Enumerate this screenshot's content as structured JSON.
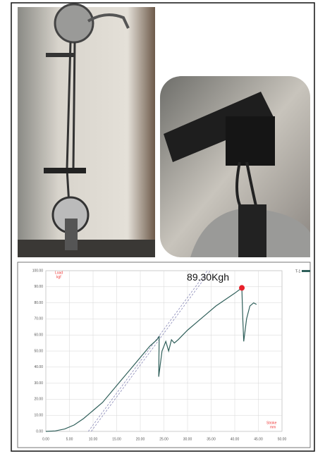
{
  "chart_data": {
    "type": "line",
    "x": [
      0,
      2,
      4,
      6,
      8,
      10,
      12,
      14,
      16,
      18,
      20,
      22,
      23.5,
      24,
      23.9,
      24.6,
      25.4,
      26,
      26.6,
      27.2,
      28,
      29,
      30,
      32,
      34,
      36,
      38,
      40,
      41.5,
      41.7,
      41.9,
      42.5,
      43.2,
      44,
      44.6
    ],
    "series": [
      {
        "name": "T-1",
        "color": "#2f5f5a",
        "values": [
          0,
          0.3,
          1.5,
          4,
          8,
          13,
          18,
          25,
          32,
          39,
          46,
          53,
          57,
          59,
          34,
          50,
          56,
          50,
          57,
          55,
          57,
          60,
          63,
          68,
          73,
          78,
          82,
          86,
          89.3,
          70,
          56,
          70,
          78,
          80,
          79
        ]
      }
    ],
    "reference_lines": [
      {
        "x": [
          9,
          34.2
        ],
        "y": [
          0,
          100
        ],
        "color": "#8a8ab8"
      },
      {
        "x": [
          9.6,
          34.8
        ],
        "y": [
          0,
          100
        ],
        "color": "#8a8ab8"
      }
    ],
    "annotation": {
      "text": "89.30Kgh",
      "x": 41.5,
      "y": 89.3,
      "color": "#e8202a"
    },
    "y_label": [
      "Load",
      "kgf"
    ],
    "x_label": [
      "Stroke",
      "mm"
    ],
    "xlim": [
      0,
      50
    ],
    "ylim": [
      0,
      100
    ],
    "xticks": [
      {
        "value": 0,
        "label": "0.00"
      },
      {
        "value": 5,
        "label": "5.00"
      },
      {
        "value": 10,
        "label": "10.00"
      },
      {
        "value": 15,
        "label": "15.00"
      },
      {
        "value": 20,
        "label": "20.00"
      },
      {
        "value": 25,
        "label": "25.00"
      },
      {
        "value": 30,
        "label": "30.00"
      },
      {
        "value": 35,
        "label": "35.00"
      },
      {
        "value": 40,
        "label": "40.00"
      },
      {
        "value": 45,
        "label": "45.00"
      },
      {
        "value": 50,
        "label": "50.00"
      }
    ],
    "yticks": [
      {
        "value": 0,
        "label": "0.00"
      },
      {
        "value": 10,
        "label": "10.00"
      },
      {
        "value": 20,
        "label": "20.00"
      },
      {
        "value": 30,
        "label": "30.00"
      },
      {
        "value": 40,
        "label": "40.00"
      },
      {
        "value": 50,
        "label": "50.00"
      },
      {
        "value": 60,
        "label": "60.00"
      },
      {
        "value": 70,
        "label": "70.00"
      },
      {
        "value": 80,
        "label": "80.00"
      },
      {
        "value": 90,
        "label": "90.00"
      },
      {
        "value": 100,
        "label": "100.00"
      }
    ],
    "grid": true
  }
}
